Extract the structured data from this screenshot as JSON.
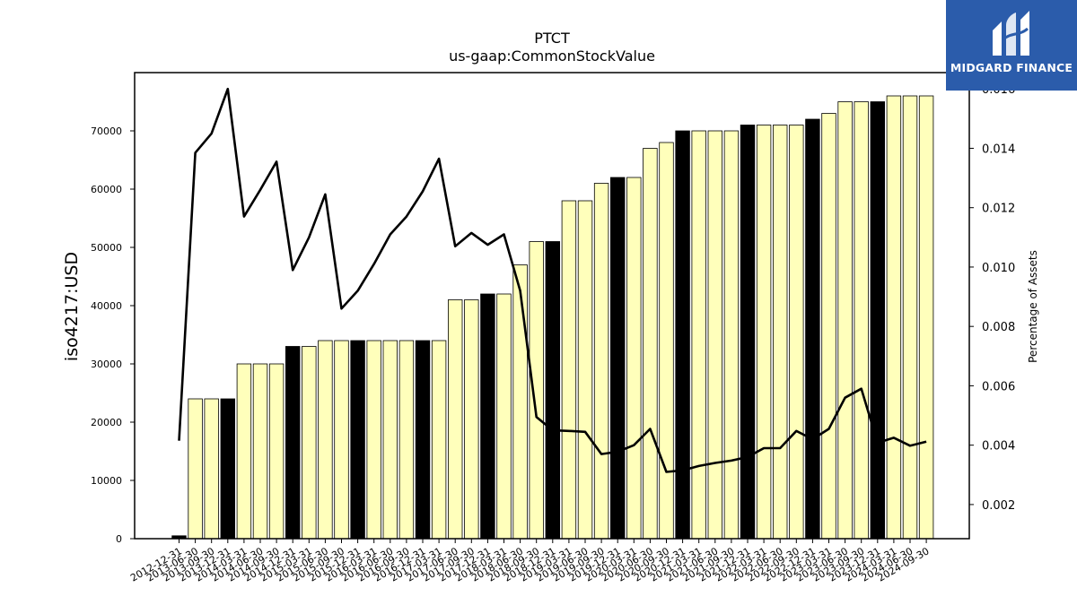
{
  "chart_data": {
    "type": "bar",
    "title": "PTCT",
    "subtitle": "us-gaap:CommonStockValue",
    "ylabel": "iso4217:USD",
    "y2label": "Percentage of Assets",
    "ylim": [
      0,
      80000
    ],
    "y2lim": [
      0.00085,
      0.01655
    ],
    "yticks": [
      0,
      10000,
      20000,
      30000,
      40000,
      50000,
      60000,
      70000
    ],
    "y2ticks": [
      0.002,
      0.004,
      0.006,
      0.008,
      0.01,
      0.012,
      0.014,
      0.016
    ],
    "y2ticklabels": [
      "0.002",
      "0.004",
      "0.006",
      "0.008",
      "0.010",
      "0.012",
      "0.014",
      "0.016"
    ],
    "categories": [
      "2012-12-31",
      "2013-06-30",
      "2013-09-30",
      "2013-12-31",
      "2014-03-31",
      "2014-06-30",
      "2014-09-30",
      "2014-12-31",
      "2015-03-31",
      "2015-06-30",
      "2015-09-30",
      "2015-12-31",
      "2016-03-31",
      "2016-06-30",
      "2016-09-30",
      "2016-12-31",
      "2017-03-31",
      "2017-06-30",
      "2017-09-30",
      "2017-12-31",
      "2018-03-31",
      "2018-06-30",
      "2018-09-30",
      "2018-12-31",
      "2019-03-31",
      "2019-06-30",
      "2019-09-30",
      "2019-12-31",
      "2020-03-31",
      "2020-06-30",
      "2020-09-30",
      "2020-12-31",
      "2021-03-31",
      "2021-06-30",
      "2021-09-30",
      "2021-12-31",
      "2022-03-31",
      "2022-06-30",
      "2022-09-30",
      "2022-12-31",
      "2023-03-31",
      "2023-06-30",
      "2023-09-30",
      "2023-12-31",
      "2024-03-31",
      "2024-06-30",
      "2024-09-30"
    ],
    "series": [
      {
        "type": "bar",
        "values": [
          500,
          24000,
          24000,
          24000,
          30000,
          30000,
          30000,
          33000,
          33000,
          34000,
          34000,
          34000,
          34000,
          34000,
          34000,
          34000,
          34000,
          41000,
          41000,
          42000,
          42000,
          47000,
          51000,
          51000,
          58000,
          58000,
          61000,
          62000,
          62000,
          67000,
          68000,
          70000,
          70000,
          70000,
          70000,
          71000,
          71000,
          71000,
          71000,
          72000,
          73000,
          75000,
          75000,
          75000,
          76000,
          76000,
          76000
        ],
        "fiscal_year_end": [
          true,
          false,
          false,
          true,
          false,
          false,
          false,
          true,
          false,
          false,
          false,
          true,
          false,
          false,
          false,
          true,
          false,
          false,
          false,
          true,
          false,
          false,
          false,
          true,
          false,
          false,
          false,
          true,
          false,
          false,
          false,
          true,
          false,
          false,
          false,
          true,
          false,
          false,
          false,
          true,
          false,
          false,
          false,
          true,
          false,
          false,
          false
        ],
        "color": "#ffffbb",
        "highlight_color": "#000000"
      },
      {
        "type": "line",
        "axis": "right",
        "color": "#000000",
        "values": [
          0.00415,
          0.01385,
          0.0145,
          0.016,
          0.0117,
          0.0126,
          0.01355,
          0.0099,
          0.011,
          0.01245,
          0.0086,
          0.0092,
          0.0101,
          0.0111,
          0.0117,
          0.01255,
          0.01365,
          0.0107,
          0.01115,
          0.01075,
          0.0111,
          0.0092,
          0.00495,
          0.0045,
          0.00448,
          0.00445,
          0.0037,
          0.00378,
          0.004,
          0.00455,
          0.0031,
          0.00315,
          0.0033,
          0.0034,
          0.00348,
          0.0036,
          0.0039,
          0.0039,
          0.00448,
          0.0042,
          0.00455,
          0.0056,
          0.0059,
          0.00408,
          0.00425,
          0.00398,
          0.00412
        ]
      }
    ],
    "legend": "none",
    "grid": false
  },
  "logo": {
    "text": "MIDGARD FINANCE",
    "icon": "midgard-logo-icon"
  }
}
